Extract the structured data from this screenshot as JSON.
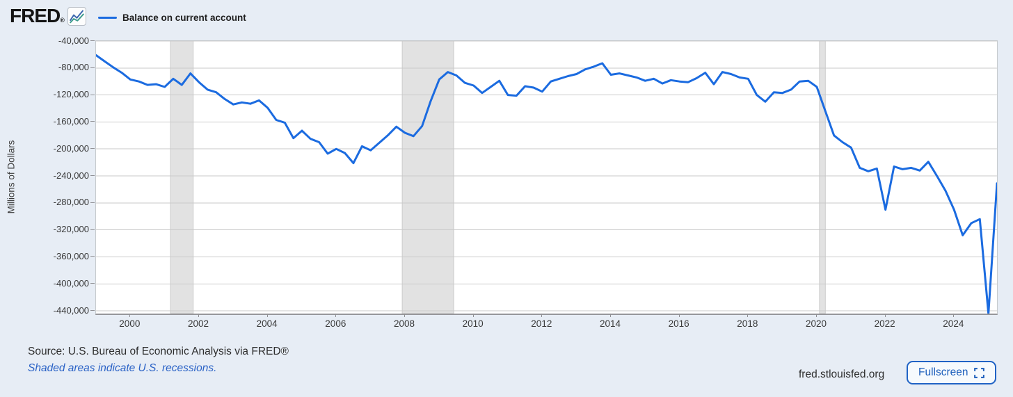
{
  "header": {
    "logo_text": "FRED",
    "logo_registered": "®",
    "legend_label": "Balance on current account"
  },
  "y_axis": {
    "title": "Millions of Dollars",
    "tick_labels": [
      "-40,000",
      "-80,000",
      "-120,000",
      "-160,000",
      "-200,000",
      "-240,000",
      "-280,000",
      "-320,000",
      "-360,000",
      "-400,000",
      "-440,000"
    ],
    "tick_values": [
      -40000,
      -80000,
      -120000,
      -160000,
      -200000,
      -240000,
      -280000,
      -320000,
      -360000,
      -400000,
      -440000
    ]
  },
  "x_axis": {
    "tick_labels": [
      "2000",
      "2002",
      "2004",
      "2006",
      "2008",
      "2010",
      "2012",
      "2014",
      "2016",
      "2018",
      "2020",
      "2022",
      "2024"
    ],
    "tick_values": [
      2000,
      2002,
      2004,
      2006,
      2008,
      2010,
      2012,
      2014,
      2016,
      2018,
      2020,
      2022,
      2024
    ]
  },
  "footer": {
    "source": "Source: U.S. Bureau of Economic Analysis via FRED®",
    "recession_note": "Shaded areas indicate U.S. recessions.",
    "site": "fred.stlouisfed.org",
    "fullscreen_label": "Fullscreen"
  },
  "colors": {
    "line": "#1b6be0",
    "background": "#e7edf5",
    "plot_background": "#ffffff",
    "grid": "#c9c9c9",
    "band": "#e2e2e2",
    "band_edge": "#cbcbcb",
    "accent_blue": "#1a5dbb",
    "text_dark": "#2e2e2e"
  },
  "chart_data": {
    "type": "line",
    "title": "Balance on current account",
    "xlabel": "",
    "ylabel": "Millions of Dollars",
    "legend_position": "top-left",
    "grid": "horizontal",
    "frequency": "quarterly",
    "x_start": 1999.0,
    "x_step": 0.25,
    "xlim": [
      1999.0,
      2025.25
    ],
    "ylim": [
      -444000,
      -40000
    ],
    "yticks": [
      -40000,
      -80000,
      -120000,
      -160000,
      -200000,
      -240000,
      -280000,
      -320000,
      -360000,
      -400000,
      -440000
    ],
    "xticks": [
      2000,
      2002,
      2004,
      2006,
      2008,
      2010,
      2012,
      2014,
      2016,
      2018,
      2020,
      2022,
      2024
    ],
    "recessions": [
      [
        2001.17,
        2001.83
      ],
      [
        2007.92,
        2009.42
      ],
      [
        2020.08,
        2020.25
      ]
    ],
    "values": [
      -61000,
      -70000,
      -79000,
      -87000,
      -97000,
      -100000,
      -105000,
      -104000,
      -108000,
      -96000,
      -105000,
      -88000,
      -101000,
      -112000,
      -116000,
      -126000,
      -134000,
      -131000,
      -133000,
      -128000,
      -139000,
      -157000,
      -161000,
      -184000,
      -173000,
      -185000,
      -190000,
      -207000,
      -200000,
      -206000,
      -221000,
      -196000,
      -202000,
      -191000,
      -180000,
      -167000,
      -176000,
      -181000,
      -166000,
      -129000,
      -97000,
      -86000,
      -91000,
      -102000,
      -106000,
      -117000,
      -108000,
      -99000,
      -120000,
      -121000,
      -107000,
      -109000,
      -115000,
      -100000,
      -96000,
      -92000,
      -89000,
      -82000,
      -78000,
      -73000,
      -90000,
      -88000,
      -91000,
      -94000,
      -99000,
      -96000,
      -103000,
      -98000,
      -100000,
      -101000,
      -95000,
      -87000,
      -104000,
      -86000,
      -89000,
      -94000,
      -96000,
      -120000,
      -130000,
      -116000,
      -117000,
      -112000,
      -100000,
      -99000,
      -108000,
      -144000,
      -180000,
      -190000,
      -198000,
      -228000,
      -233000,
      -229000,
      -290000,
      -226000,
      -230000,
      -228000,
      -232000,
      -219000,
      -240000,
      -262000,
      -290000,
      -328000,
      -310000,
      -304000,
      -446000,
      -251000
    ]
  }
}
